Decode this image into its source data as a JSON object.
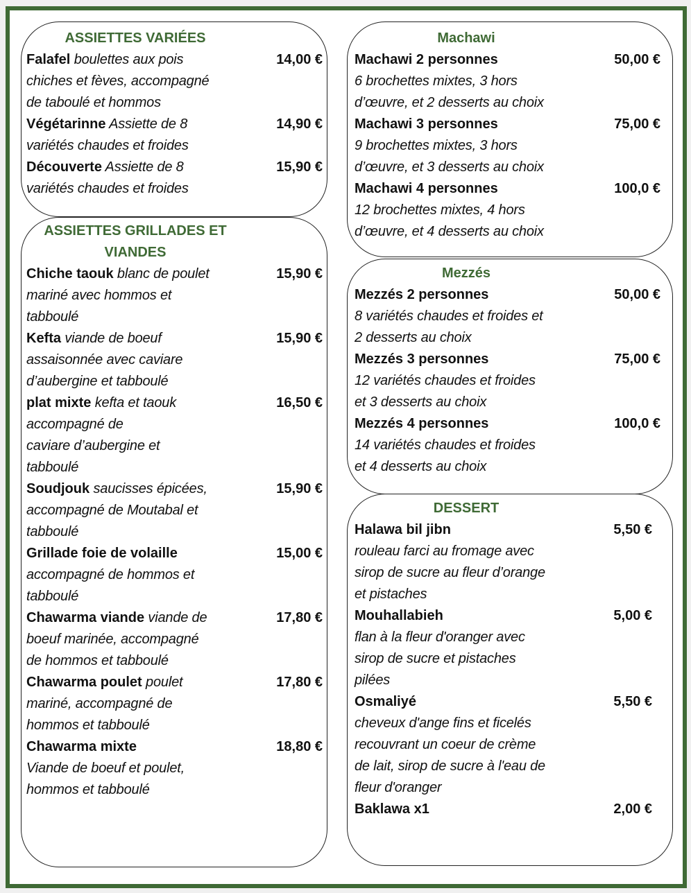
{
  "colors": {
    "frame": "#3f6a35",
    "heading": "#3f6a35",
    "text": "#111111"
  },
  "sections": [
    {
      "title": "ASSIETTES VARIÉES",
      "items": [
        {
          "name": "Falafel",
          "desc": " boulettes aux pois\nchiches et fèves, accompagné\nde taboulé et hommos",
          "price": "14,00 €"
        },
        {
          "name": "Végétarinne",
          "desc": " Assiette de 8\nvariétés chaudes et froides",
          "price": "14,90 €"
        },
        {
          "name": "Découverte",
          "desc": " Assiette de 8\nvariétés chaudes et froides",
          "price": "15,90 €"
        }
      ]
    },
    {
      "title": "ASSIETTES GRILLADES ET\nVIANDES",
      "items": [
        {
          "name": "Chiche taouk",
          "desc": " blanc de poulet\nmariné avec hommos et\ntabboulé",
          "price": "15,90 €"
        },
        {
          "name": "Kefta",
          "desc": " viande de boeuf\nassaisonnée avec caviare\nd’aubergine et tabboulé",
          "price": "15,90 €"
        },
        {
          "name": "plat mixte",
          "desc": " kefta et taouk\naccompagné de\ncaviare d’aubergine et\ntabboulé",
          "price": "16,50 €"
        },
        {
          "name": "Soudjouk",
          "desc": " saucisses épicées,\naccompagné de Moutabal et\ntabboulé",
          "price": "15,90 €"
        },
        {
          "name": "Grillade foie de volaille",
          "desc": "\naccompagné de hommos et\ntabboulé",
          "price": "15,00 €"
        },
        {
          "name": "Chawarma viande",
          "desc": " viande de\nboeuf marinée, accompagné\nde hommos et tabboulé",
          "price": "17,80 €"
        },
        {
          "name": "Chawarma poulet",
          "desc": " poulet\nmariné, accompagné de\nhommos et tabboulé",
          "price": "17,80 €"
        },
        {
          "name": "Chawarma mixte",
          "desc": "\nViande de boeuf et poulet,\nhommos et tabboulé",
          "price": "18,80 €"
        }
      ]
    },
    {
      "title": "Machawi",
      "items": [
        {
          "name": "Machawi 2 personnes",
          "desc": "\n6 brochettes mixtes, 3 hors\nd’œuvre, et 2 desserts au choix",
          "price": "50,00 €"
        },
        {
          "name": "Machawi 3 personnes",
          "desc": "\n9 brochettes mixtes, 3 hors\nd’œuvre, et 3 desserts au choix",
          "price": "75,00 €"
        },
        {
          "name": "Machawi 4 personnes",
          "desc": "\n12 brochettes mixtes, 4 hors\nd’œuvre, et 4 desserts au choix",
          "price": "100,0 €"
        }
      ]
    },
    {
      "title": "Mezzés",
      "items": [
        {
          "name": "Mezzés 2 personnes",
          "desc": "\n8 variétés chaudes et froides et\n2 desserts au choix",
          "price": "50,00 €"
        },
        {
          "name": "Mezzés 3 personnes",
          "desc": "\n12 variétés chaudes et froides\net 3 desserts au choix",
          "price": "75,00 €"
        },
        {
          "name": "Mezzés 4 personnes",
          "desc": "\n14 variétés chaudes et froides\net 4 desserts au choix",
          "price": "100,0 €"
        }
      ]
    },
    {
      "title": "DESSERT",
      "items": [
        {
          "name": "Halawa bil jibn",
          "desc": "\nrouleau farci au fromage avec\nsirop de sucre au fleur d’orange\net pistaches",
          "price": "5,50 €"
        },
        {
          "name": "Mouhallabieh",
          "desc": "\nflan à la fleur d'oranger avec\nsirop de sucre et pistaches\npilées",
          "price": "5,00 €"
        },
        {
          "name": "Osmaliyé",
          "desc": "\ncheveux d'ange fins et ficelés\nrecouvrant un coeur de crème\nde lait, sirop de sucre à l'eau de\nfleur d'oranger",
          "price": "5,50 €"
        },
        {
          "name": "Baklawa x1",
          "desc": "",
          "price": "2,00 €"
        }
      ]
    }
  ]
}
